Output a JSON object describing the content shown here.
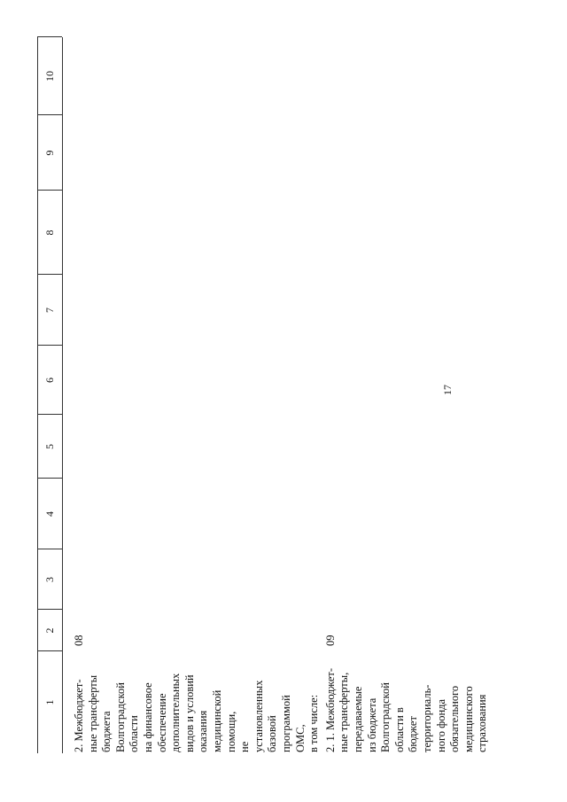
{
  "page_number": "17",
  "table": {
    "columns": [
      "1",
      "2",
      "3",
      "4",
      "5",
      "6",
      "7",
      "8",
      "9",
      "10"
    ],
    "rows": [
      {
        "label": [
          "2. Межбюджет-",
          "ные трансферты",
          "бюджета",
          "Волгоградской",
          "области",
          "на финансовое",
          "обеспечение",
          "дополнительных",
          "видов и условий",
          "оказания",
          "медицинской",
          "помощи,",
          "не",
          "установленных",
          "базовой",
          "программой",
          "ОМС,",
          "в том числе:"
        ],
        "code": "08"
      },
      {
        "label": [
          "2. 1. Межбюджет-",
          "ные трансферты,",
          "передаваемые",
          "из бюджета",
          "Волгоградской",
          "области в",
          "бюджет",
          "территориаль-",
          "ного фонда",
          "обязательного",
          "медицинского",
          "страхования"
        ],
        "code": "09"
      }
    ]
  }
}
